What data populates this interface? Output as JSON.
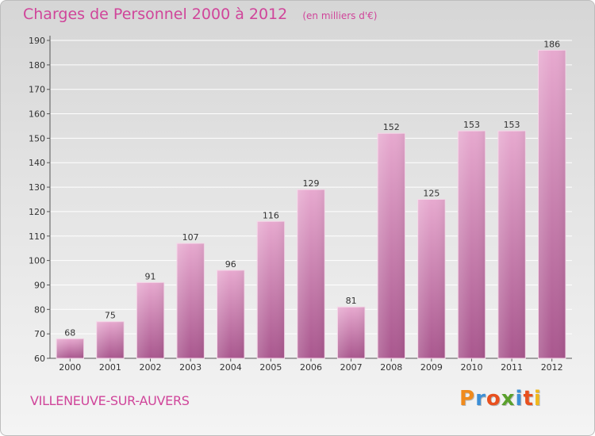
{
  "header": {
    "title": "Charges de Personnel 2000 à 2012",
    "subtitle": "(en milliers d'€)"
  },
  "footer": {
    "city": "VILLENEUVE-SUR-AUVERS",
    "logo": "Proxiti"
  },
  "colors": {
    "accent": "#d0459a",
    "bar_top": "#e7a9cf",
    "bar_bottom": "#a9578e",
    "logo_letters": [
      "#f08a1c",
      "#3c8fd6",
      "#e8501e",
      "#5aa02c",
      "#3c8fd6",
      "#e8501e",
      "#f0b81c"
    ]
  },
  "chart_data": {
    "type": "bar",
    "categories": [
      "2000",
      "2001",
      "2002",
      "2003",
      "2004",
      "2005",
      "2006",
      "2007",
      "2008",
      "2009",
      "2010",
      "2011",
      "2012"
    ],
    "values": [
      68,
      75,
      91,
      107,
      96,
      116,
      129,
      81,
      152,
      125,
      153,
      153,
      186
    ],
    "title": "Charges de Personnel 2000 à 2012",
    "subtitle": "(en milliers d'€)",
    "xlabel": "",
    "ylabel": "",
    "ylim": [
      60,
      190
    ],
    "yticks": [
      60,
      70,
      80,
      90,
      100,
      110,
      120,
      130,
      140,
      150,
      160,
      170,
      180,
      190
    ],
    "grid": true,
    "data_labels": true
  }
}
